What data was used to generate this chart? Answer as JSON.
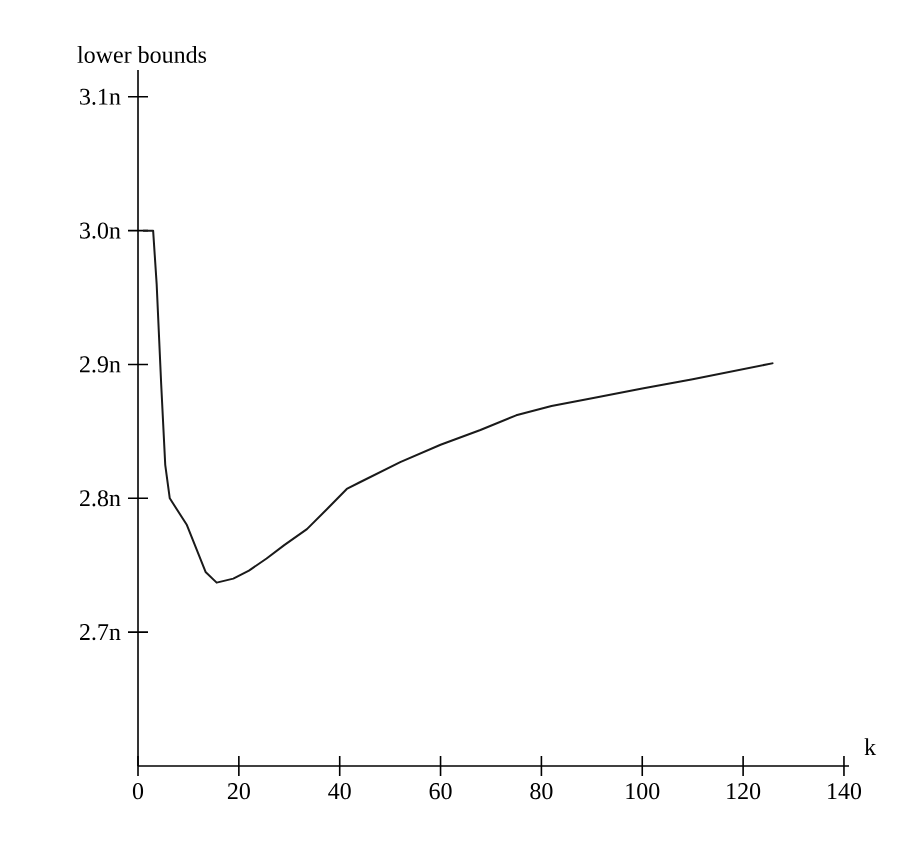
{
  "chart_data": {
    "type": "line",
    "ylabel": "lower bounds",
    "xlabel": "k",
    "x": [
      1,
      3.0,
      3.7,
      4.6,
      5.4,
      6.3,
      8,
      9.7,
      11.6,
      13.4,
      15.6,
      18.9,
      22,
      25.5,
      29,
      33.5,
      37.5,
      41.4,
      44,
      52,
      60,
      67.9,
      75,
      82,
      90.3,
      100,
      110,
      118,
      126
    ],
    "values": [
      3.0,
      3.0,
      2.96,
      2.885,
      2.825,
      2.8,
      2.79,
      2.78,
      2.762,
      2.745,
      2.737,
      2.74,
      2.746,
      2.755,
      2.765,
      2.777,
      2.792,
      2.807,
      2.812,
      2.827,
      2.84,
      2.851,
      2.862,
      2.869,
      2.875,
      2.882,
      2.889,
      2.895,
      2.901
    ],
    "color": "#1a1a1a",
    "xlim": [
      0,
      141
    ],
    "ylim": [
      2.6,
      3.12
    ],
    "xticks": [
      0,
      20,
      40,
      60,
      80,
      100,
      120,
      140
    ],
    "yticks": [
      {
        "value": 2.7,
        "label": "2.7n"
      },
      {
        "value": 2.8,
        "label": "2.8n"
      },
      {
        "value": 2.9,
        "label": "2.9n"
      },
      {
        "value": 3.0,
        "label": "3.0n"
      },
      {
        "value": 3.1,
        "label": "3.1n"
      }
    ]
  }
}
